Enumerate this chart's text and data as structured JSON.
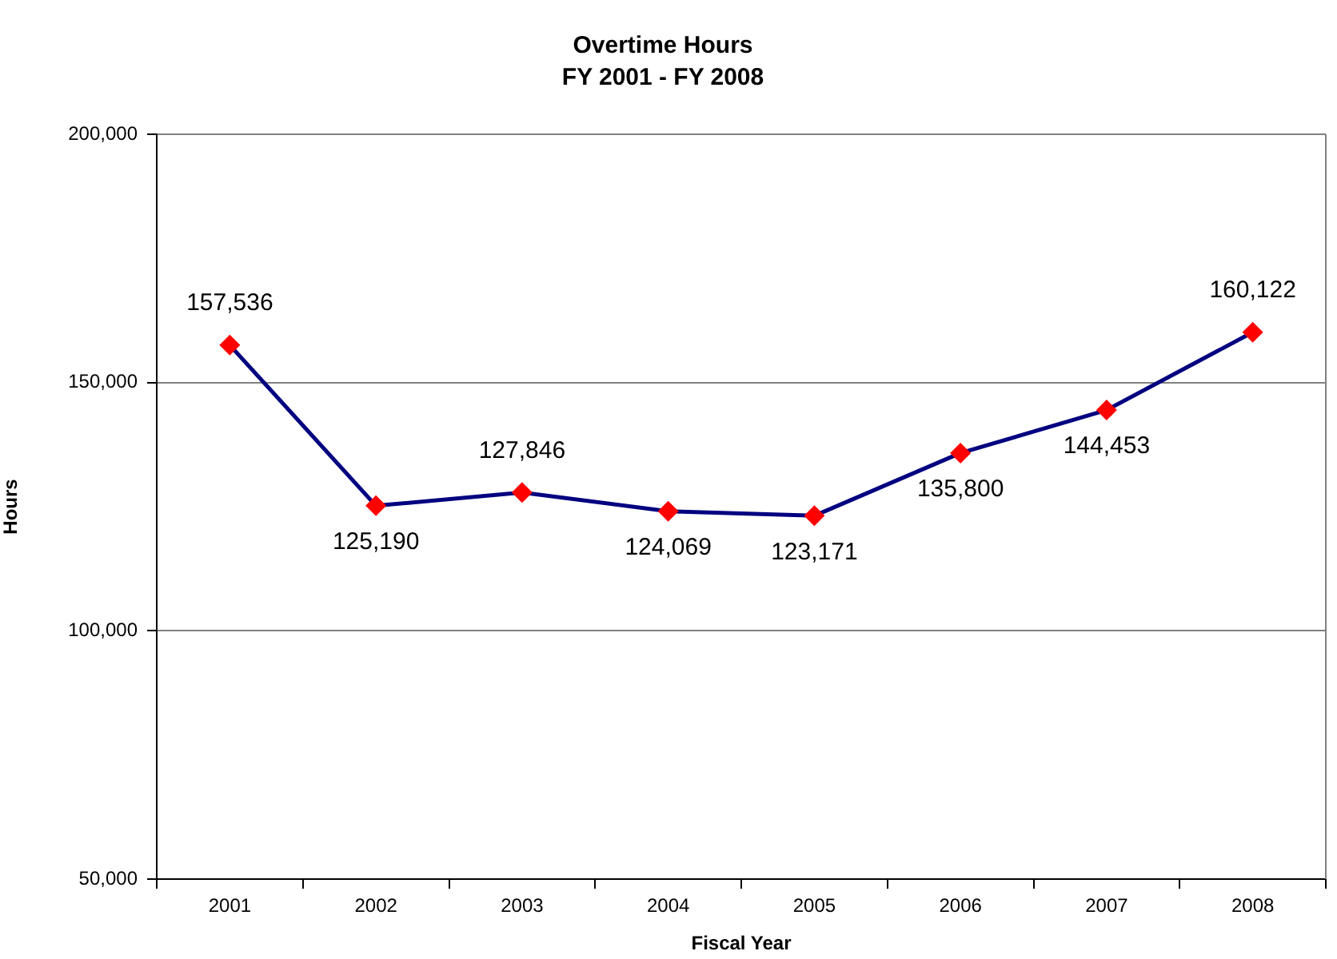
{
  "chart_data": {
    "type": "line",
    "title": "Overtime Hours",
    "subtitle": "FY 2001 - FY 2008",
    "xlabel": "Fiscal Year",
    "ylabel": "Hours",
    "categories": [
      "2001",
      "2002",
      "2003",
      "2004",
      "2005",
      "2006",
      "2007",
      "2008"
    ],
    "series": [
      {
        "color": "#000080",
        "colors": [
          "#ff0000",
          "#ff0000",
          "#ff0000",
          "#ff0000",
          "#ff0000",
          "#ff0000",
          "#ff0000",
          "#ff0000"
        ],
        "values": [
          157536,
          125190,
          127846,
          124069,
          123171,
          135800,
          144453,
          160122
        ],
        "value_labels": [
          "157,536",
          "125,190",
          "127,846",
          "124,069",
          "123,171",
          "135,800",
          "144,453",
          "160,122"
        ]
      }
    ],
    "ylim": [
      50000,
      200000
    ],
    "yticks": [
      {
        "value": 50000,
        "label": "50,000"
      },
      {
        "value": 100000,
        "label": "100,000"
      },
      {
        "value": 150000,
        "label": "150,000"
      },
      {
        "value": 200000,
        "label": "200,000"
      }
    ],
    "grid": "y",
    "marker": "diamond",
    "line_style": "solid"
  }
}
